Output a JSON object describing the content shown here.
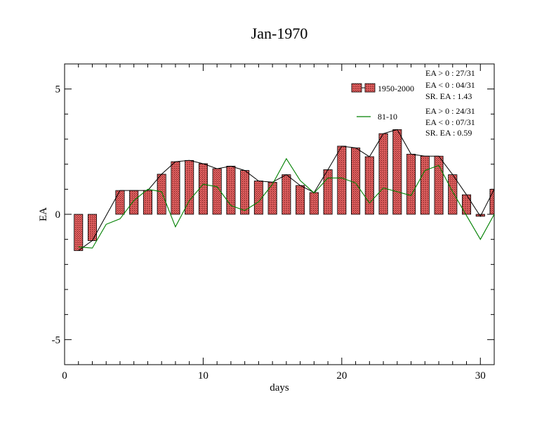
{
  "chart_data": {
    "type": "bar",
    "title": "Jan-1970",
    "xlabel": "days",
    "ylabel": "EA",
    "xlim": [
      0,
      31
    ],
    "ylim": [
      -6,
      6
    ],
    "x_ticks": [
      0,
      10,
      20,
      30
    ],
    "y_ticks": [
      5,
      0,
      -5
    ],
    "grid": false,
    "legend_position": "top-right",
    "x": [
      1,
      2,
      3,
      4,
      5,
      6,
      7,
      8,
      9,
      10,
      11,
      12,
      13,
      14,
      15,
      16,
      17,
      18,
      19,
      20,
      21,
      22,
      23,
      24,
      25,
      26,
      27,
      28,
      29,
      30,
      31
    ],
    "series": [
      {
        "name": "1950-2000",
        "kind": "bar-with-line",
        "bar_color": "#e06060",
        "line_color": "#000000",
        "values": [
          -1.45,
          -1.05,
          null,
          0.95,
          0.95,
          0.95,
          1.6,
          2.1,
          2.15,
          2.02,
          1.82,
          1.92,
          1.75,
          1.33,
          1.28,
          1.58,
          1.15,
          0.87,
          1.78,
          2.72,
          2.65,
          2.3,
          3.22,
          3.38,
          2.4,
          2.32,
          2.32,
          1.58,
          0.78,
          -0.08,
          1.0
        ],
        "stats": [
          "EA > 0 : 27/31",
          "EA < 0 : 04/31",
          "SR. EA :  1.43"
        ]
      },
      {
        "name": "81-10",
        "kind": "line",
        "line_color": "#008000",
        "values": [
          -1.3,
          -1.35,
          -0.4,
          -0.18,
          0.55,
          1.0,
          0.9,
          -0.5,
          0.55,
          1.2,
          1.1,
          0.35,
          0.15,
          0.5,
          1.2,
          2.22,
          1.35,
          0.85,
          1.45,
          1.45,
          1.25,
          0.45,
          1.05,
          0.9,
          0.75,
          1.75,
          1.95,
          0.9,
          -0.05,
          -1.0,
          0.0
        ],
        "stats": [
          "EA > 0 : 24/31",
          "EA < 0 : 07/31",
          "SR. EA :  0.59"
        ]
      }
    ]
  }
}
